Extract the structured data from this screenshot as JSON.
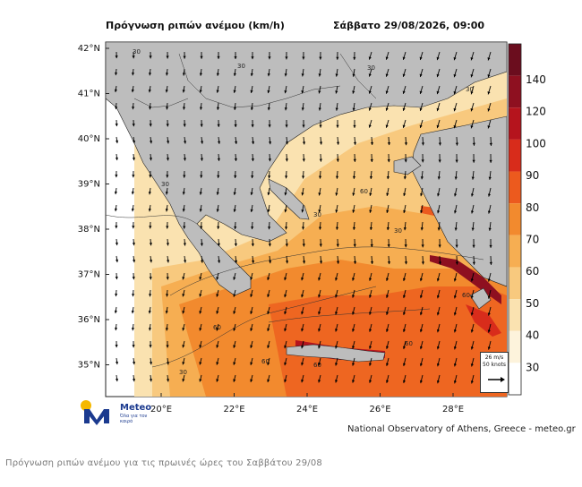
{
  "header": {
    "title": "Πρόγνωση ριπών ανέμου (km/h)",
    "datetime": "Σάββατο 29/08/2026, 09:00"
  },
  "map": {
    "latitude_labels": [
      "42°N",
      "41°N",
      "40°N",
      "39°N",
      "38°N",
      "37°N",
      "36°N",
      "35°N"
    ],
    "longitude_labels": [
      "20°E",
      "22°E",
      "24°E",
      "26°E",
      "28°E"
    ],
    "contour_label": "30",
    "contour_label_60": "60",
    "land_color": "#bdbdbd",
    "sea_color": "#ffffff"
  },
  "colorbar": {
    "labels": [
      "140",
      "120",
      "100",
      "90",
      "80",
      "70",
      "60",
      "50",
      "40",
      "30"
    ],
    "colors": [
      "#6b0d1e",
      "#8e1020",
      "#b5141d",
      "#d82c1b",
      "#ec5a1e",
      "#f28a2e",
      "#f6ae52",
      "#f8c97e",
      "#fae2b0",
      "#fdf3dc",
      "#ffffff"
    ]
  },
  "reference_vector": {
    "line1": "26 m/s",
    "line2": "50 knots"
  },
  "logo": {
    "name": "Meteo",
    "tagline": "Όλα για τον καιρό"
  },
  "credit": "National Observatory of Athens, Greece - meteo.gr",
  "caption": "Πρόγνωση ριπών ανέμου για τις πρωινές ώρες του Σαββάτου 29/08"
}
